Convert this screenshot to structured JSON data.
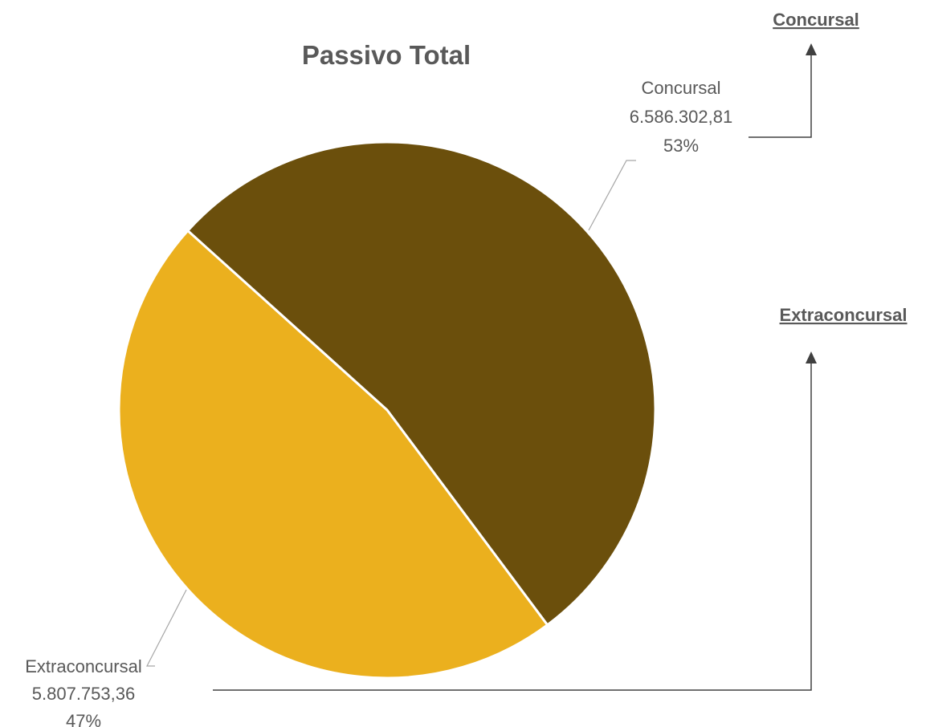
{
  "chart_data": {
    "type": "pie",
    "title": "Passivo Total",
    "slices": [
      {
        "name": "Concursal",
        "value": 6586302.81,
        "value_label": "6.586.302,81",
        "percent_label": "53%",
        "color": "#6b4f0c"
      },
      {
        "name": "Extraconcursal",
        "value": 5807753.36,
        "value_label": "5.807.753,36",
        "percent_label": "47%",
        "color": "#ebb01e"
      }
    ],
    "legend": "none"
  },
  "links": {
    "concursal": "Concursal",
    "extraconcursal": "Extraconcursal"
  }
}
